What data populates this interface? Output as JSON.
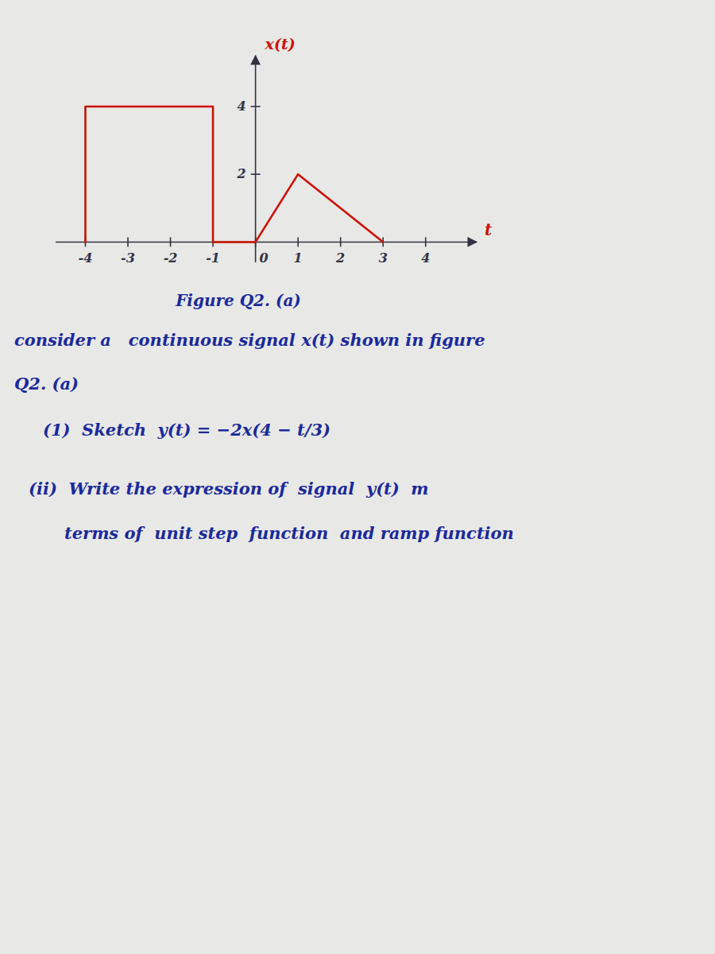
{
  "chart_data": {
    "type": "line",
    "title": "Figure Q2. (a)",
    "xlabel": "t",
    "ylabel": "x(t)",
    "x": [
      -4,
      -4,
      -1,
      -1,
      0,
      1,
      3
    ],
    "values": [
      0,
      4,
      4,
      0,
      0,
      2,
      0
    ],
    "color": "#cc1100",
    "xlim": [
      -4.7,
      5.2
    ],
    "ylim": [
      -0.6,
      5.5
    ],
    "xticks": [
      -4,
      -3,
      -2,
      -1,
      0,
      1,
      2,
      3,
      4
    ],
    "yticks": [
      2,
      4
    ],
    "grid": false,
    "annotations": [
      "consider a   continuous signal x(t) shown in figure",
      "Q2. (a)",
      "(1)  Sketch  y(t) = −2x(4 − t/3)",
      "(ii)  Write the expression of  signal  y(t)  m",
      "terms of  unit step  function  and ramp function"
    ]
  }
}
